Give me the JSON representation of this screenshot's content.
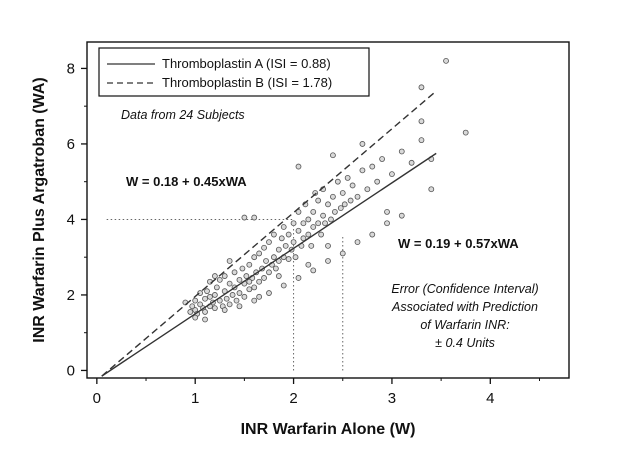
{
  "chart_data": {
    "type": "scatter",
    "xlabel": "INR Warfarin Alone (W)",
    "ylabel": "INR Warfarin Plus Argatroban (WA)",
    "xlim": [
      -0.1,
      4.8
    ],
    "ylim": [
      -0.2,
      8.7
    ],
    "x_ticks": [
      "0",
      "1",
      "2",
      "3",
      "4"
    ],
    "y_ticks": [
      "0",
      "2",
      "4",
      "6",
      "8"
    ],
    "grid": false,
    "legend_position": "top-left",
    "legend": [
      {
        "label": "Thromboplastin A (ISI = 0.88)",
        "style": "solid"
      },
      {
        "label": "Thromboplastin B (ISI = 1.78)",
        "style": "dashed"
      }
    ],
    "annotations": {
      "data_note": "Data from 24 Subjects",
      "eq_b": "W = 0.18 + 0.45xWA",
      "eq_a": "W = 0.19 + 0.57xWA",
      "error_lines": [
        "Error (Confidence Interval)",
        "Associated with Prediction",
        "of Warfarin INR:",
        "± 0.4 Units"
      ]
    },
    "fit_lines": [
      {
        "name": "Thromboplastin A (ISI = 0.88)",
        "style": "solid",
        "x": [
          0.05,
          3.45
        ],
        "y": [
          -0.15,
          5.75
        ]
      },
      {
        "name": "Thromboplastin B (ISI = 1.78)",
        "style": "dashed",
        "x": [
          0.05,
          3.45
        ],
        "y": [
          -0.15,
          7.4
        ]
      }
    ],
    "reference_lines": [
      {
        "x": [
          0.1,
          2.0
        ],
        "y": [
          4.0,
          4.0
        ]
      },
      {
        "x": [
          2.0,
          2.0
        ],
        "y": [
          0.0,
          4.0
        ]
      },
      {
        "x": [
          2.5,
          2.5
        ],
        "y": [
          0.0,
          3.6
        ]
      }
    ],
    "points": [
      [
        0.95,
        1.55
      ],
      [
        0.97,
        1.7
      ],
      [
        1.0,
        1.6
      ],
      [
        1.0,
        1.85
      ],
      [
        1.02,
        1.5
      ],
      [
        1.05,
        1.75
      ],
      [
        1.05,
        2.05
      ],
      [
        1.08,
        1.65
      ],
      [
        1.1,
        1.9
      ],
      [
        1.1,
        1.55
      ],
      [
        1.12,
        2.1
      ],
      [
        1.15,
        1.7
      ],
      [
        1.15,
        1.95
      ],
      [
        1.18,
        1.8
      ],
      [
        1.2,
        2.0
      ],
      [
        1.2,
        1.65
      ],
      [
        1.22,
        2.2
      ],
      [
        1.25,
        1.85
      ],
      [
        1.25,
        2.4
      ],
      [
        1.28,
        1.7
      ],
      [
        1.3,
        2.1
      ],
      [
        1.3,
        2.5
      ],
      [
        1.32,
        1.9
      ],
      [
        1.35,
        2.3
      ],
      [
        1.35,
        1.75
      ],
      [
        1.38,
        2.0
      ],
      [
        1.4,
        2.6
      ],
      [
        1.4,
        2.2
      ],
      [
        1.42,
        1.85
      ],
      [
        1.45,
        2.4
      ],
      [
        1.45,
        2.05
      ],
      [
        1.48,
        2.7
      ],
      [
        1.5,
        2.3
      ],
      [
        1.5,
        1.95
      ],
      [
        1.52,
        2.5
      ],
      [
        1.55,
        2.8
      ],
      [
        1.55,
        2.15
      ],
      [
        1.58,
        2.45
      ],
      [
        1.6,
        3.0
      ],
      [
        1.6,
        2.2
      ],
      [
        1.62,
        2.6
      ],
      [
        1.65,
        2.35
      ],
      [
        1.65,
        3.1
      ],
      [
        1.68,
        2.7
      ],
      [
        1.7,
        2.45
      ],
      [
        1.7,
        3.25
      ],
      [
        1.72,
        2.9
      ],
      [
        1.75,
        2.6
      ],
      [
        1.75,
        3.4
      ],
      [
        1.78,
        2.8
      ],
      [
        1.8,
        3.0
      ],
      [
        1.8,
        3.6
      ],
      [
        1.82,
        2.7
      ],
      [
        1.85,
        3.2
      ],
      [
        1.85,
        2.9
      ],
      [
        1.88,
        3.5
      ],
      [
        1.9,
        3.0
      ],
      [
        1.9,
        3.8
      ],
      [
        1.92,
        3.3
      ],
      [
        1.95,
        2.95
      ],
      [
        1.95,
        3.6
      ],
      [
        1.98,
        3.2
      ],
      [
        2.0,
        3.9
      ],
      [
        2.0,
        3.4
      ],
      [
        2.02,
        3.0
      ],
      [
        2.05,
        3.7
      ],
      [
        2.05,
        4.2
      ],
      [
        2.08,
        3.3
      ],
      [
        2.1,
        3.9
      ],
      [
        2.1,
        3.5
      ],
      [
        2.12,
        4.4
      ],
      [
        2.15,
        3.6
      ],
      [
        2.15,
        4.0
      ],
      [
        2.18,
        3.3
      ],
      [
        2.2,
        4.2
      ],
      [
        2.2,
        3.8
      ],
      [
        2.22,
        4.7
      ],
      [
        2.25,
        3.9
      ],
      [
        2.25,
        4.5
      ],
      [
        2.28,
        3.6
      ],
      [
        2.3,
        4.1
      ],
      [
        2.3,
        4.8
      ],
      [
        2.32,
        3.9
      ],
      [
        2.35,
        4.4
      ],
      [
        2.38,
        4.0
      ],
      [
        2.4,
        4.6
      ],
      [
        2.42,
        4.2
      ],
      [
        2.45,
        5.0
      ],
      [
        2.48,
        4.3
      ],
      [
        2.5,
        4.7
      ],
      [
        2.52,
        4.4
      ],
      [
        2.55,
        5.1
      ],
      [
        2.58,
        4.5
      ],
      [
        2.6,
        4.9
      ],
      [
        2.65,
        4.6
      ],
      [
        2.7,
        5.3
      ],
      [
        2.75,
        4.8
      ],
      [
        2.8,
        5.4
      ],
      [
        2.85,
        5.0
      ],
      [
        2.9,
        5.6
      ],
      [
        3.0,
        5.2
      ],
      [
        3.1,
        5.8
      ],
      [
        3.2,
        5.5
      ],
      [
        3.3,
        6.1
      ],
      [
        3.4,
        5.6
      ],
      [
        2.05,
        5.4
      ],
      [
        2.4,
        5.7
      ],
      [
        2.7,
        6.0
      ],
      [
        3.3,
        7.5
      ],
      [
        3.4,
        4.8
      ],
      [
        3.55,
        8.2
      ],
      [
        3.75,
        6.3
      ],
      [
        3.3,
        6.6
      ],
      [
        2.95,
        4.2
      ],
      [
        1.5,
        4.05
      ],
      [
        1.6,
        4.05
      ],
      [
        1.3,
        1.6
      ],
      [
        1.45,
        1.7
      ],
      [
        1.6,
        1.85
      ],
      [
        1.75,
        2.05
      ],
      [
        1.9,
        2.25
      ],
      [
        2.05,
        2.45
      ],
      [
        2.2,
        2.65
      ],
      [
        2.35,
        2.9
      ],
      [
        2.5,
        3.1
      ],
      [
        2.65,
        3.4
      ],
      [
        2.8,
        3.6
      ],
      [
        2.95,
        3.9
      ],
      [
        3.1,
        4.1
      ],
      [
        0.9,
        1.8
      ],
      [
        1.0,
        1.4
      ],
      [
        1.1,
        1.35
      ],
      [
        1.15,
        2.35
      ],
      [
        1.2,
        2.5
      ],
      [
        1.35,
        2.9
      ],
      [
        1.55,
        2.35
      ],
      [
        1.65,
        1.95
      ],
      [
        1.85,
        2.5
      ],
      [
        2.15,
        2.8
      ],
      [
        2.35,
        3.3
      ]
    ]
  }
}
